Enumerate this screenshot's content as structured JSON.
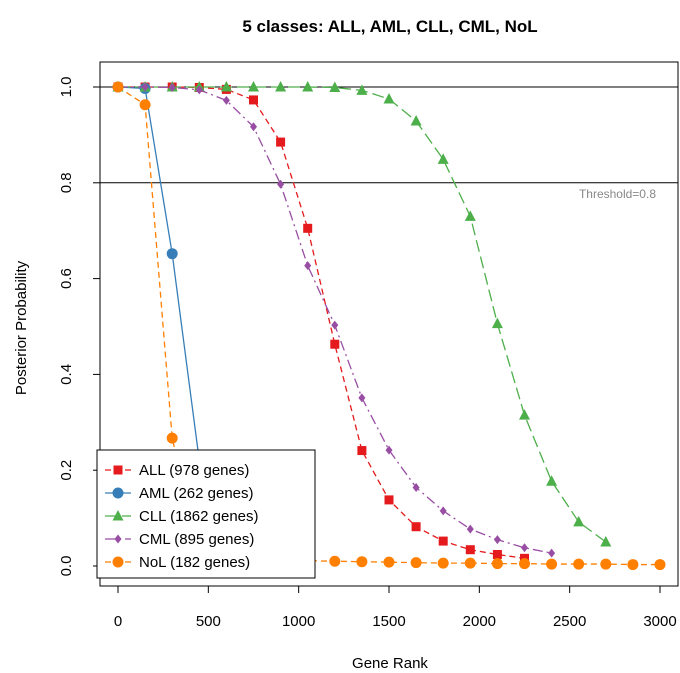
{
  "chart_data": {
    "type": "line",
    "title": "5 classes: ALL, AML, CLL, CML, NoL",
    "xlabel": "Gene Rank",
    "ylabel": "Posterior Probability",
    "xlim": [
      0,
      3000
    ],
    "ylim": [
      0,
      1
    ],
    "x_ticks": [
      "0",
      "500",
      "1000",
      "1500",
      "2000",
      "2500",
      "3000"
    ],
    "y_ticks": [
      "0.0",
      "0.2",
      "0.4",
      "0.6",
      "0.8",
      "1.0"
    ],
    "threshold": {
      "value": 0.8,
      "label": "Threshold=0.8"
    },
    "reference_line": 1.0,
    "grid": false,
    "legend_position": "bottom-left",
    "series": [
      {
        "name": "ALL (978 genes)",
        "color": "#E41A1C",
        "marker": "square",
        "dash": "dashed",
        "points": [
          [
            0,
            1.0
          ],
          [
            150,
            1.0
          ],
          [
            300,
            1.0
          ],
          [
            450,
            0.999
          ],
          [
            600,
            0.995
          ],
          [
            750,
            0.973
          ],
          [
            900,
            0.885
          ],
          [
            1050,
            0.705
          ],
          [
            1200,
            0.463
          ],
          [
            1350,
            0.241
          ],
          [
            1500,
            0.138
          ],
          [
            1650,
            0.082
          ],
          [
            1800,
            0.052
          ],
          [
            1950,
            0.034
          ],
          [
            2100,
            0.024
          ],
          [
            2250,
            0.016
          ]
        ]
      },
      {
        "name": "AML (262 genes)",
        "color": "#377EB8",
        "marker": "circle",
        "dash": "solid",
        "points": [
          [
            0,
            1.0
          ],
          [
            150,
            0.997
          ],
          [
            300,
            0.652
          ],
          [
            450,
            0.22
          ],
          [
            600,
            0.04
          ],
          [
            750,
            0.018
          ],
          [
            900,
            0.012
          ]
        ]
      },
      {
        "name": "CLL (1862 genes)",
        "color": "#4DAF4A",
        "marker": "triangle",
        "dash": "longdash",
        "points": [
          [
            0,
            1.0
          ],
          [
            150,
            1.0
          ],
          [
            300,
            1.0
          ],
          [
            450,
            1.0
          ],
          [
            600,
            1.0
          ],
          [
            750,
            1.0
          ],
          [
            900,
            1.0
          ],
          [
            1050,
            1.0
          ],
          [
            1200,
            0.999
          ],
          [
            1350,
            0.993
          ],
          [
            1500,
            0.975
          ],
          [
            1650,
            0.929
          ],
          [
            1800,
            0.849
          ],
          [
            1950,
            0.73
          ],
          [
            2100,
            0.506
          ],
          [
            2250,
            0.315
          ],
          [
            2400,
            0.177
          ],
          [
            2550,
            0.092
          ],
          [
            2700,
            0.05
          ]
        ]
      },
      {
        "name": "CML (895 genes)",
        "color": "#984EA3",
        "marker": "diamond",
        "dash": "dashdot",
        "points": [
          [
            0,
            1.0
          ],
          [
            150,
            1.0
          ],
          [
            300,
            0.999
          ],
          [
            450,
            0.994
          ],
          [
            600,
            0.972
          ],
          [
            750,
            0.917
          ],
          [
            900,
            0.797
          ],
          [
            1050,
            0.627
          ],
          [
            1200,
            0.503
          ],
          [
            1350,
            0.351
          ],
          [
            1500,
            0.242
          ],
          [
            1650,
            0.164
          ],
          [
            1800,
            0.115
          ],
          [
            1950,
            0.077
          ],
          [
            2100,
            0.055
          ],
          [
            2250,
            0.038
          ],
          [
            2400,
            0.027
          ]
        ]
      },
      {
        "name": "NoL (182 genes)",
        "color": "#FF7F00",
        "marker": "circle",
        "dash": "dashed",
        "points": [
          [
            0,
            1.0
          ],
          [
            150,
            0.963
          ],
          [
            300,
            0.267
          ],
          [
            450,
            0.02
          ],
          [
            600,
            0.015
          ],
          [
            750,
            0.013
          ],
          [
            900,
            0.012
          ],
          [
            1050,
            0.011
          ],
          [
            1200,
            0.01
          ],
          [
            1350,
            0.009
          ],
          [
            1500,
            0.008
          ],
          [
            1650,
            0.007
          ],
          [
            1800,
            0.006
          ],
          [
            1950,
            0.006
          ],
          [
            2100,
            0.005
          ],
          [
            2250,
            0.005
          ],
          [
            2400,
            0.004
          ],
          [
            2550,
            0.004
          ],
          [
            2700,
            0.004
          ],
          [
            2850,
            0.003
          ],
          [
            3000,
            0.003
          ]
        ]
      }
    ]
  }
}
